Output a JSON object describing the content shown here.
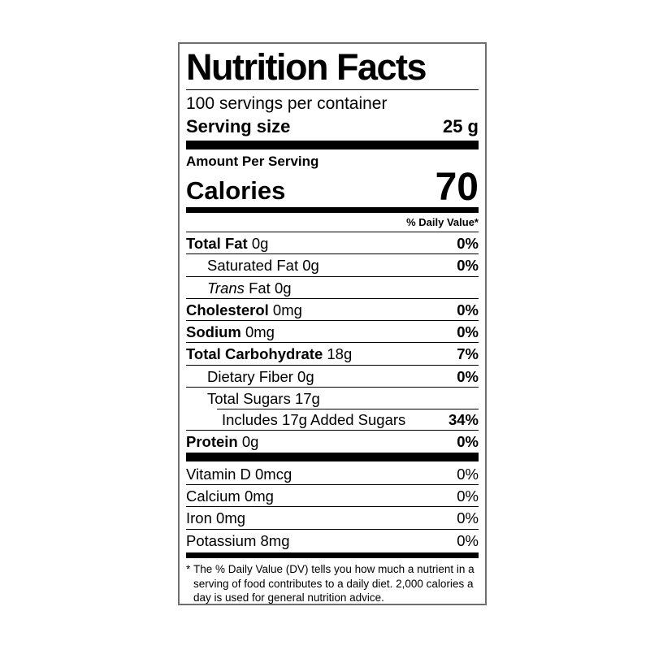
{
  "label": {
    "title": "Nutrition Facts",
    "servings_per_container": "100 servings per container",
    "serving_size_label": "Serving size",
    "serving_size_value": "25 g",
    "amount_per_serving": "Amount Per Serving",
    "calories_label": "Calories",
    "calories_value": "70",
    "daily_value_header": "% Daily Value*",
    "nutrients": [
      {
        "name": "Total Fat",
        "amount": "0g",
        "dv": "0%"
      },
      {
        "name": "Saturated Fat",
        "amount": "0g",
        "dv": "0%"
      },
      {
        "name_italic": "Trans",
        "name": "Fat",
        "amount": "0g",
        "dv": ""
      },
      {
        "name": "Cholesterol",
        "amount": "0mg",
        "dv": "0%"
      },
      {
        "name": "Sodium",
        "amount": "0mg",
        "dv": "0%"
      },
      {
        "name": "Total Carbohydrate",
        "amount": "18g",
        "dv": "7%"
      },
      {
        "name": "Dietary Fiber",
        "amount": "0g",
        "dv": "0%"
      },
      {
        "name": "Total Sugars",
        "amount": "17g",
        "dv": ""
      },
      {
        "name": "Includes 17g Added Sugars",
        "amount": "",
        "dv": "34%"
      },
      {
        "name": "Protein",
        "amount": "0g",
        "dv": "0%"
      }
    ],
    "micronutrients": [
      {
        "name": "Vitamin D",
        "amount": "0mcg",
        "dv": "0%"
      },
      {
        "name": "Calcium",
        "amount": "0mg",
        "dv": "0%"
      },
      {
        "name": "Iron",
        "amount": "0mg",
        "dv": "0%"
      },
      {
        "name": "Potassium",
        "amount": "8mg",
        "dv": "0%"
      }
    ],
    "footnote_marker": "*",
    "footnote": "The % Daily Value (DV) tells you how much a nutrient in a serving of food contributes to a daily diet. 2,000 calories a day is used for general nutrition advice."
  },
  "colors": {
    "text": "#000000",
    "background": "#ffffff",
    "border": "#6f6f6f",
    "bar": "#000000"
  }
}
